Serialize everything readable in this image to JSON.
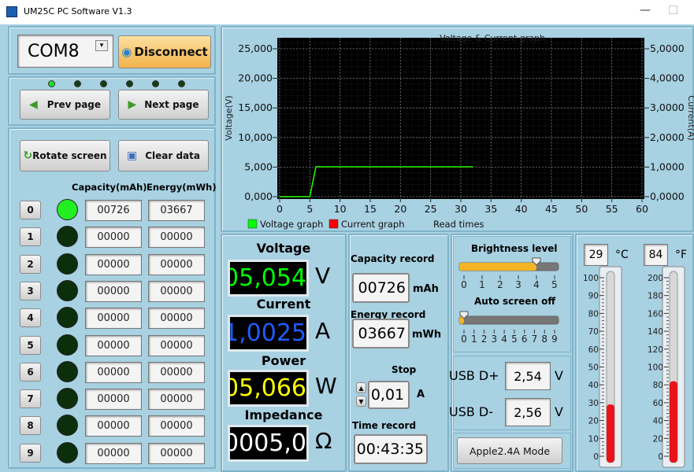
{
  "window": {
    "title": "UM25C PC Software V1.3"
  },
  "connection": {
    "port": "COM8",
    "button": "Disconnect"
  },
  "paging": {
    "prev": "Prev page",
    "next": "Next page"
  },
  "actions": {
    "rotate": "Rotate screen",
    "clear": "Clear data"
  },
  "records_table": {
    "headers": [
      "Capacity(mAh)",
      "Energy(mWh)"
    ],
    "rows": [
      {
        "index": "0",
        "capacity": "00726",
        "energy": "03667",
        "active": true
      },
      {
        "index": "1",
        "capacity": "00000",
        "energy": "00000",
        "active": false
      },
      {
        "index": "2",
        "capacity": "00000",
        "energy": "00000",
        "active": false
      },
      {
        "index": "3",
        "capacity": "00000",
        "energy": "00000",
        "active": false
      },
      {
        "index": "4",
        "capacity": "00000",
        "energy": "00000",
        "active": false
      },
      {
        "index": "5",
        "capacity": "00000",
        "energy": "00000",
        "active": false
      },
      {
        "index": "6",
        "capacity": "00000",
        "energy": "00000",
        "active": false
      },
      {
        "index": "7",
        "capacity": "00000",
        "energy": "00000",
        "active": false
      },
      {
        "index": "8",
        "capacity": "00000",
        "energy": "00000",
        "active": false
      },
      {
        "index": "9",
        "capacity": "00000",
        "energy": "00000",
        "active": false
      }
    ]
  },
  "graph": {
    "type": "line",
    "title": "Voltage & Current graph",
    "y_label": "Voltage(V)",
    "y2_label": "Current(A)",
    "x_label": "Read times",
    "x": [
      0,
      5,
      6,
      32
    ],
    "series": [
      {
        "name": "Voltage graph",
        "color": "#00ff00",
        "values": [
          0,
          0,
          5.054,
          5.054
        ]
      },
      {
        "name": "Current graph",
        "color": "#ff0000",
        "axis": "y2",
        "values": [
          0,
          0,
          1.0025,
          1.0025
        ]
      }
    ],
    "xlim": [
      0,
      60
    ],
    "xticks": [
      0,
      5,
      10,
      15,
      20,
      25,
      30,
      35,
      40,
      45,
      50,
      55,
      60
    ],
    "ylim": [
      0,
      25
    ],
    "yticks": [
      {
        "value": 0,
        "label": "0,000"
      },
      {
        "value": 5,
        "label": "5,000"
      },
      {
        "value": 10,
        "label": "10,000"
      },
      {
        "value": 15,
        "label": "15,000"
      },
      {
        "value": 20,
        "label": "20,000"
      },
      {
        "value": 25,
        "label": "25,000"
      }
    ],
    "y2lim": [
      0,
      5
    ],
    "y2ticks": [
      {
        "value": 0,
        "label": "0,0000"
      },
      {
        "value": 1,
        "label": "1,0000"
      },
      {
        "value": 2,
        "label": "2,0000"
      },
      {
        "value": 3,
        "label": "3,0000"
      },
      {
        "value": 4,
        "label": "4,0000"
      },
      {
        "value": 5,
        "label": "5,0000"
      }
    ],
    "grid": true
  },
  "readings": [
    {
      "label": "Voltage",
      "display": "05,054",
      "unit": "V",
      "color": "#00ff00"
    },
    {
      "label": "Current",
      "display": "1,0025",
      "unit": "A",
      "color": "#1e5cff"
    },
    {
      "label": "Power",
      "display": "05,066",
      "unit": "W",
      "color": "#ffff00"
    },
    {
      "label": "Impedance",
      "display": "0005,0",
      "unit": "Ω",
      "color": "#ffffff"
    }
  ],
  "records": {
    "capacity_label": "Capacity record",
    "capacity": "00726",
    "capacity_unit": "mAh",
    "energy_label": "Energy record",
    "energy": "03667",
    "energy_unit": "mWh",
    "stop_label": "Stop",
    "stop": "0,01",
    "stop_unit": "A",
    "time_label": "Time record",
    "time": "00:43:35"
  },
  "settings": {
    "brightness_label": "Brightness level",
    "brightness_ticks": [
      0,
      1,
      2,
      3,
      4,
      5
    ],
    "brightness": 4,
    "auto_off_label": "Auto screen off",
    "auto_off_ticks": [
      0,
      1,
      2,
      3,
      4,
      5,
      6,
      7,
      8,
      9
    ],
    "auto_off": 0,
    "usb_dp_label": "USB D+",
    "usb_dp": "2,54",
    "usb_dm_label": "USB D-",
    "usb_dm": "2,56",
    "usb_unit": "V",
    "mode_button": "Apple2.4A Mode"
  },
  "temperature": {
    "celsius": {
      "display": "29",
      "unit": "°C",
      "value": 29,
      "lim": [
        0,
        100
      ],
      "ticks": [
        0,
        10,
        20,
        30,
        40,
        50,
        60,
        70,
        80,
        90,
        100
      ]
    },
    "fahrenheit": {
      "display": "84",
      "unit": "°F",
      "value": 84,
      "lim": [
        0,
        200
      ],
      "ticks": [
        0,
        20,
        40,
        60,
        80,
        100,
        120,
        140,
        160,
        180,
        200
      ]
    }
  }
}
